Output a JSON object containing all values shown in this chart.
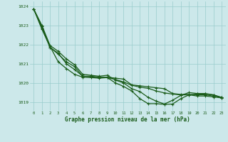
{
  "background_color": "#cce8ea",
  "grid_color": "#99cccc",
  "line_color": "#1a5c1a",
  "xlabel": "Graphe pression niveau de la mer (hPa)",
  "xlabel_color": "#1a5c1a",
  "ylabel_ticks": [
    1019,
    1020,
    1021,
    1022,
    1023,
    1024
  ],
  "xlim": [
    -0.5,
    23.5
  ],
  "ylim": [
    1018.55,
    1024.25
  ],
  "x": [
    0,
    1,
    2,
    3,
    4,
    5,
    6,
    7,
    8,
    9,
    10,
    11,
    12,
    13,
    14,
    15,
    16,
    17,
    18,
    19,
    20,
    21,
    22,
    23
  ],
  "line1": [
    1023.85,
    1022.95,
    1021.85,
    1021.5,
    1021.1,
    1020.85,
    1020.35,
    1020.35,
    1020.3,
    1020.3,
    1020.25,
    1020.2,
    1019.9,
    1019.85,
    1019.8,
    1019.75,
    1019.7,
    1019.45,
    1019.4,
    1019.4,
    1019.38,
    1019.38,
    1019.32,
    1019.25
  ],
  "line2": [
    1023.85,
    1023.0,
    1021.95,
    1021.65,
    1021.25,
    1020.95,
    1020.45,
    1020.4,
    1020.35,
    1020.4,
    1020.15,
    1020.0,
    1019.7,
    1019.55,
    1019.25,
    1019.05,
    1018.9,
    1019.1,
    1019.35,
    1019.5,
    1019.45,
    1019.45,
    1019.38,
    1019.25
  ],
  "line3": [
    1023.85,
    1022.85,
    1021.85,
    1021.55,
    1021.0,
    1020.7,
    1020.35,
    1020.32,
    1020.28,
    1020.28,
    1020.18,
    1020.05,
    1019.88,
    1019.78,
    1019.72,
    1019.58,
    1019.48,
    1019.42,
    1019.38,
    1019.38,
    1019.32,
    1019.32,
    1019.27,
    1019.22
  ],
  "line4": [
    1023.85,
    1022.8,
    1021.9,
    1021.1,
    1020.75,
    1020.45,
    1020.3,
    1020.28,
    1020.25,
    1020.28,
    1020.0,
    1019.82,
    1019.58,
    1019.18,
    1018.92,
    1018.92,
    1018.88,
    1018.9,
    1019.18,
    1019.38,
    1019.42,
    1019.42,
    1019.38,
    1019.22
  ]
}
